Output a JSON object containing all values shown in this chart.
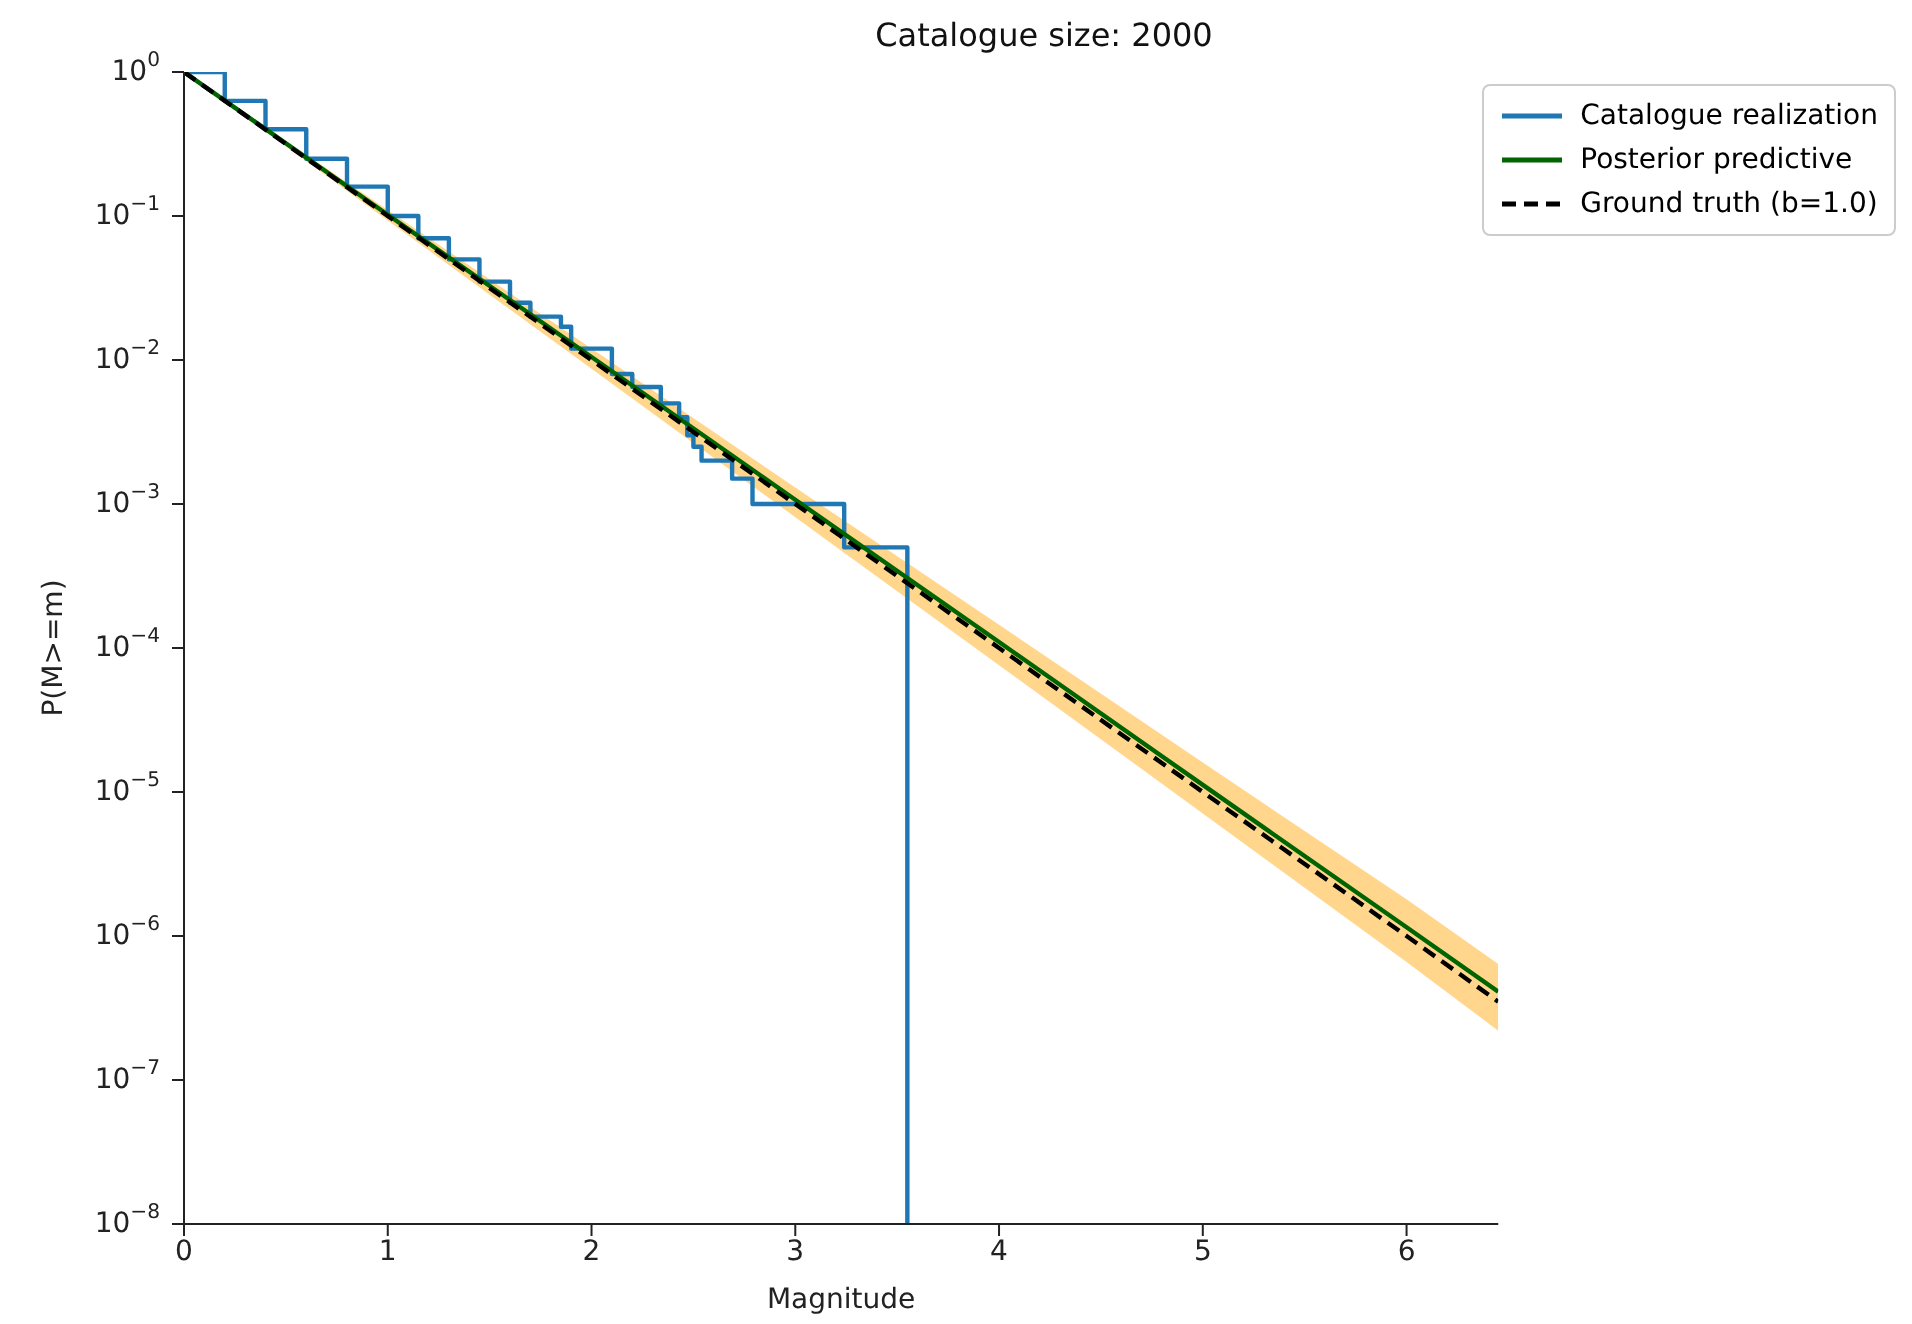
{
  "chart_data": {
    "type": "line",
    "title": "Catalogue size: 2000",
    "xlabel": "Magnitude",
    "ylabel": "P(M>=m)",
    "log": "y",
    "xlim": [
      0,
      6.45
    ],
    "xticks": [
      0,
      1,
      2,
      3,
      4,
      5,
      6
    ],
    "ylim": [
      1e-08,
      1
    ],
    "yticks": [
      {
        "value": 1,
        "label": "10$^{0}$"
      },
      {
        "value": 0.1,
        "label": "10$^{−1}$"
      },
      {
        "value": 0.01,
        "label": "10$^{−2}$"
      },
      {
        "value": 0.001,
        "label": "10$^{−3}$"
      },
      {
        "value": 0.0001,
        "label": "10$^{−4}$"
      },
      {
        "value": 1e-05,
        "label": "10$^{−5}$"
      },
      {
        "value": 1e-06,
        "label": "10$^{−6}$"
      },
      {
        "value": 1e-07,
        "label": "10$^{−7}$"
      },
      {
        "value": 1e-08,
        "label": "10$^{−8}$"
      }
    ],
    "legend": "top right",
    "grid": false,
    "series": [
      {
        "name": "Catalogue realization",
        "type": "step",
        "color": "#1f77b4",
        "line_style": "solid",
        "x": [
          0,
          0.2,
          0.4,
          0.6,
          0.8,
          1.0,
          1.15,
          1.3,
          1.45,
          1.6,
          1.7,
          1.85,
          1.9,
          2.1,
          2.2,
          2.34,
          2.43,
          2.47,
          2.5,
          2.54,
          2.69,
          2.79,
          3.24,
          3.55
        ],
        "values": [
          1,
          0.63,
          0.4,
          0.25,
          0.16,
          0.1,
          0.07,
          0.05,
          0.035,
          0.025,
          0.02,
          0.017,
          0.012,
          0.008,
          0.0065,
          0.005,
          0.004,
          0.003,
          0.0025,
          0.002,
          0.0015,
          0.001,
          0.0005,
          1e-08
        ]
      },
      {
        "name": "Posterior predictive",
        "type": "line",
        "color": "#006400",
        "line_style": "solid",
        "x": [
          0,
          1,
          2,
          3,
          4,
          5,
          6,
          6.45
        ],
        "values": [
          1,
          0.102,
          0.0105,
          0.00107,
          0.00011,
          1.12e-05,
          1.15e-06,
          4.1e-07
        ],
        "lower": [
          1,
          0.093,
          0.0087,
          0.00081,
          7.6e-05,
          7.1e-06,
          6.6e-07,
          2.2e-07
        ],
        "upper": [
          1,
          0.11,
          0.012,
          0.0013,
          0.000145,
          1.6e-05,
          1.8e-06,
          6.4e-07
        ]
      },
      {
        "name": "Ground truth (b=1.0)",
        "type": "line",
        "color": "#000000",
        "line_style": "dashed",
        "x": [
          0,
          1,
          2,
          3,
          4,
          5,
          6,
          6.45
        ],
        "values": [
          1,
          0.1,
          0.01,
          0.001,
          0.0001,
          1e-05,
          1e-06,
          3.5e-07
        ]
      }
    ]
  }
}
